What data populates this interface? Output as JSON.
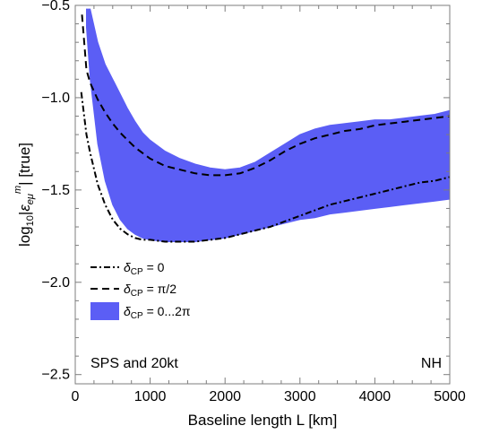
{
  "chart_data": {
    "type": "area",
    "xlabel": "Baseline length L [km]",
    "ylabel": {
      "prefix": "log",
      "prefix_sub": "10",
      "bar_open": "|",
      "symbol": "ε",
      "symbol_sub": "eμ",
      "symbol_sup": "m",
      "bar_close": "|",
      "suffix": " [true]"
    },
    "xlim": [
      0,
      5000
    ],
    "ylim": [
      -2.55,
      -0.5
    ],
    "x_ticks": [
      0,
      1000,
      2000,
      3000,
      4000,
      5000
    ],
    "x_tick_labels": [
      "0",
      "1000",
      "2000",
      "3000",
      "4000",
      "5000"
    ],
    "y_ticks": [
      -2.5,
      -2.0,
      -1.5,
      -1.0,
      -0.5
    ],
    "y_tick_labels": [
      "−2.5",
      "−2.0",
      "−1.5",
      "−1.0",
      "−0.5"
    ],
    "grid": false,
    "legend_placement": "lower-left",
    "annotations": {
      "left": "SPS and 20kt",
      "right": "NH"
    },
    "band": {
      "name": "δCP = 0...2π",
      "legend": {
        "symbol": "δ",
        "sub": "CP",
        "text": " = 0...2π"
      },
      "color": "#5b5ef5",
      "x": [
        150,
        200,
        300,
        400,
        500,
        600,
        700,
        800,
        900,
        1000,
        1200,
        1400,
        1600,
        1800,
        2000,
        2200,
        2400,
        2600,
        2800,
        3000,
        3200,
        3400,
        3600,
        3800,
        4000,
        4200,
        4400,
        4600,
        4800,
        5000
      ],
      "upper": [
        -0.52,
        -0.52,
        -0.7,
        -0.82,
        -0.9,
        -0.98,
        -1.06,
        -1.13,
        -1.19,
        -1.23,
        -1.29,
        -1.33,
        -1.36,
        -1.38,
        -1.39,
        -1.38,
        -1.35,
        -1.3,
        -1.25,
        -1.2,
        -1.17,
        -1.15,
        -1.14,
        -1.13,
        -1.12,
        -1.12,
        -1.11,
        -1.1,
        -1.09,
        -1.07
      ],
      "lower": [
        -0.62,
        -0.9,
        -1.25,
        -1.45,
        -1.58,
        -1.66,
        -1.71,
        -1.74,
        -1.76,
        -1.77,
        -1.78,
        -1.78,
        -1.78,
        -1.77,
        -1.76,
        -1.74,
        -1.72,
        -1.7,
        -1.68,
        -1.66,
        -1.65,
        -1.63,
        -1.62,
        -1.61,
        -1.6,
        -1.59,
        -1.58,
        -1.57,
        -1.56,
        -1.55
      ]
    },
    "series": [
      {
        "name": "δCP = 0",
        "legend": {
          "symbol": "δ",
          "sub": "CP",
          "text": " = 0"
        },
        "style": "dash-dot",
        "x": [
          80,
          150,
          200,
          300,
          400,
          500,
          600,
          700,
          800,
          900,
          1000,
          1200,
          1400,
          1600,
          1800,
          2000,
          2200,
          2400,
          2600,
          2800,
          3000,
          3200,
          3400,
          3600,
          3800,
          4000,
          4200,
          4400,
          4600,
          4800,
          5000
        ],
        "y": [
          -0.97,
          -1.2,
          -1.3,
          -1.47,
          -1.58,
          -1.66,
          -1.71,
          -1.74,
          -1.76,
          -1.77,
          -1.77,
          -1.78,
          -1.78,
          -1.78,
          -1.77,
          -1.76,
          -1.74,
          -1.72,
          -1.7,
          -1.67,
          -1.64,
          -1.61,
          -1.58,
          -1.56,
          -1.54,
          -1.52,
          -1.5,
          -1.48,
          -1.46,
          -1.45,
          -1.43
        ]
      },
      {
        "name": "δCP = π/2",
        "legend": {
          "symbol": "δ",
          "sub": "CP",
          "text": " = π/2"
        },
        "style": "dashed",
        "x": [
          90,
          150,
          200,
          300,
          400,
          500,
          600,
          700,
          800,
          900,
          1000,
          1200,
          1400,
          1600,
          1800,
          2000,
          2200,
          2400,
          2600,
          2800,
          3000,
          3200,
          3400,
          3600,
          3800,
          4000,
          4200,
          4400,
          4600,
          4800,
          5000
        ],
        "y": [
          -0.55,
          -0.85,
          -0.92,
          -1.01,
          -1.08,
          -1.14,
          -1.19,
          -1.23,
          -1.27,
          -1.3,
          -1.33,
          -1.37,
          -1.39,
          -1.41,
          -1.42,
          -1.42,
          -1.41,
          -1.38,
          -1.34,
          -1.29,
          -1.25,
          -1.22,
          -1.2,
          -1.18,
          -1.17,
          -1.15,
          -1.14,
          -1.13,
          -1.12,
          -1.11,
          -1.1
        ]
      }
    ]
  }
}
